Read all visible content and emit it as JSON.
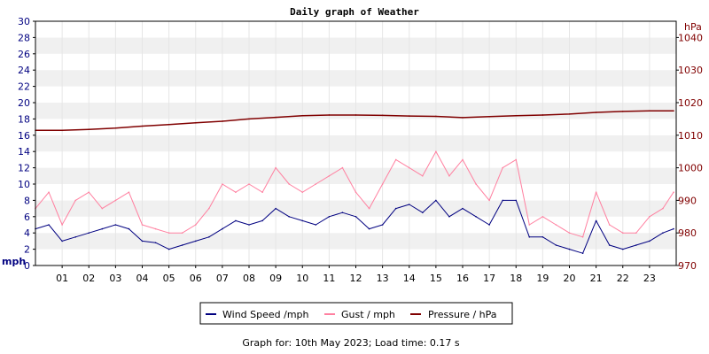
{
  "chart_data": {
    "type": "line",
    "title": "Daily graph of Weather",
    "left_axis": {
      "unit": "mph",
      "ylim": [
        0,
        30
      ],
      "ticks": [
        "0",
        "2",
        "4",
        "6",
        "8",
        "10",
        "12",
        "14",
        "16",
        "18",
        "20",
        "22",
        "24",
        "26",
        "28",
        "30"
      ]
    },
    "right_axis": {
      "unit": "hPa",
      "ylim": [
        970,
        1045
      ],
      "ticks": [
        "970",
        "980",
        "990",
        "1000",
        "1010",
        "1020",
        "1030",
        "1040"
      ]
    },
    "x_axis": {
      "xlim": [
        0,
        24
      ],
      "ticks": [
        "01",
        "02",
        "03",
        "04",
        "05",
        "06",
        "07",
        "08",
        "09",
        "10",
        "11",
        "12",
        "13",
        "14",
        "15",
        "16",
        "17",
        "18",
        "19",
        "20",
        "21",
        "22",
        "23"
      ]
    },
    "grid": "horizontal alternating bands",
    "legend_position": "bottom",
    "colors": {
      "wind": "#000080",
      "gust": "#ff80a0",
      "pressure": "#800000"
    },
    "series": [
      {
        "name": "Wind Speed /mph",
        "axis": "left",
        "x": [
          0,
          0.5,
          1,
          1.5,
          2,
          2.5,
          3,
          3.5,
          4,
          4.5,
          5,
          5.5,
          6,
          6.5,
          7,
          7.5,
          8,
          8.5,
          9,
          9.5,
          10,
          10.5,
          11,
          11.5,
          12,
          12.5,
          13,
          13.5,
          14,
          14.5,
          15,
          15.5,
          16,
          16.5,
          17,
          17.5,
          18,
          18.5,
          19,
          19.5,
          20,
          20.5,
          21,
          21.5,
          22,
          22.5,
          23,
          23.5,
          23.9
        ],
        "y": [
          4.5,
          5,
          3,
          3.5,
          4,
          4.5,
          5,
          4.5,
          3,
          2.8,
          2,
          2.5,
          3,
          3.5,
          4.5,
          5.5,
          5,
          5.5,
          7,
          6,
          5.5,
          5,
          6,
          6.5,
          6,
          4.5,
          5,
          7,
          7.5,
          6.5,
          8,
          6,
          7,
          6,
          5,
          8,
          8,
          3.5,
          3.5,
          2.5,
          2,
          1.5,
          5.5,
          2.5,
          2,
          2.5,
          3,
          4,
          4.5
        ]
      },
      {
        "name": "Gust / mph",
        "axis": "left",
        "x": [
          0,
          0.5,
          1,
          1.5,
          2,
          2.5,
          3,
          3.5,
          4,
          4.5,
          5,
          5.5,
          6,
          6.5,
          7,
          7.5,
          8,
          8.5,
          9,
          9.5,
          10,
          10.5,
          11,
          11.5,
          12,
          12.5,
          13,
          13.5,
          14,
          14.5,
          15,
          15.5,
          16,
          16.5,
          17,
          17.5,
          18,
          18.5,
          19,
          19.5,
          20,
          20.5,
          21,
          21.5,
          22,
          22.5,
          23,
          23.5,
          23.9
        ],
        "y": [
          7,
          9,
          5,
          8,
          9,
          7,
          8,
          9,
          5,
          4.5,
          4,
          4,
          5,
          7,
          10,
          9,
          10,
          9,
          12,
          10,
          9,
          10,
          11,
          12,
          9,
          7,
          10,
          13,
          12,
          11,
          14,
          11,
          13,
          10,
          8,
          12,
          13,
          5,
          6,
          5,
          4,
          3.5,
          9,
          5,
          4,
          4,
          6,
          7,
          9
        ]
      },
      {
        "name": "Pressure / hPa",
        "axis": "right",
        "x": [
          0,
          1,
          2,
          3,
          4,
          5,
          6,
          7,
          8,
          9,
          10,
          11,
          12,
          13,
          14,
          15,
          16,
          17,
          18,
          19,
          20,
          21,
          22,
          23,
          23.9
        ],
        "y": [
          1011.5,
          1011.5,
          1011.8,
          1012.2,
          1012.8,
          1013.3,
          1013.8,
          1014.3,
          1015,
          1015.5,
          1016,
          1016.2,
          1016.2,
          1016.1,
          1015.9,
          1015.8,
          1015.4,
          1015.7,
          1016,
          1016.2,
          1016.5,
          1017,
          1017.3,
          1017.5,
          1017.5
        ]
      }
    ]
  },
  "footer": "Graph for: 10th May 2023; Load time: 0.17 s"
}
